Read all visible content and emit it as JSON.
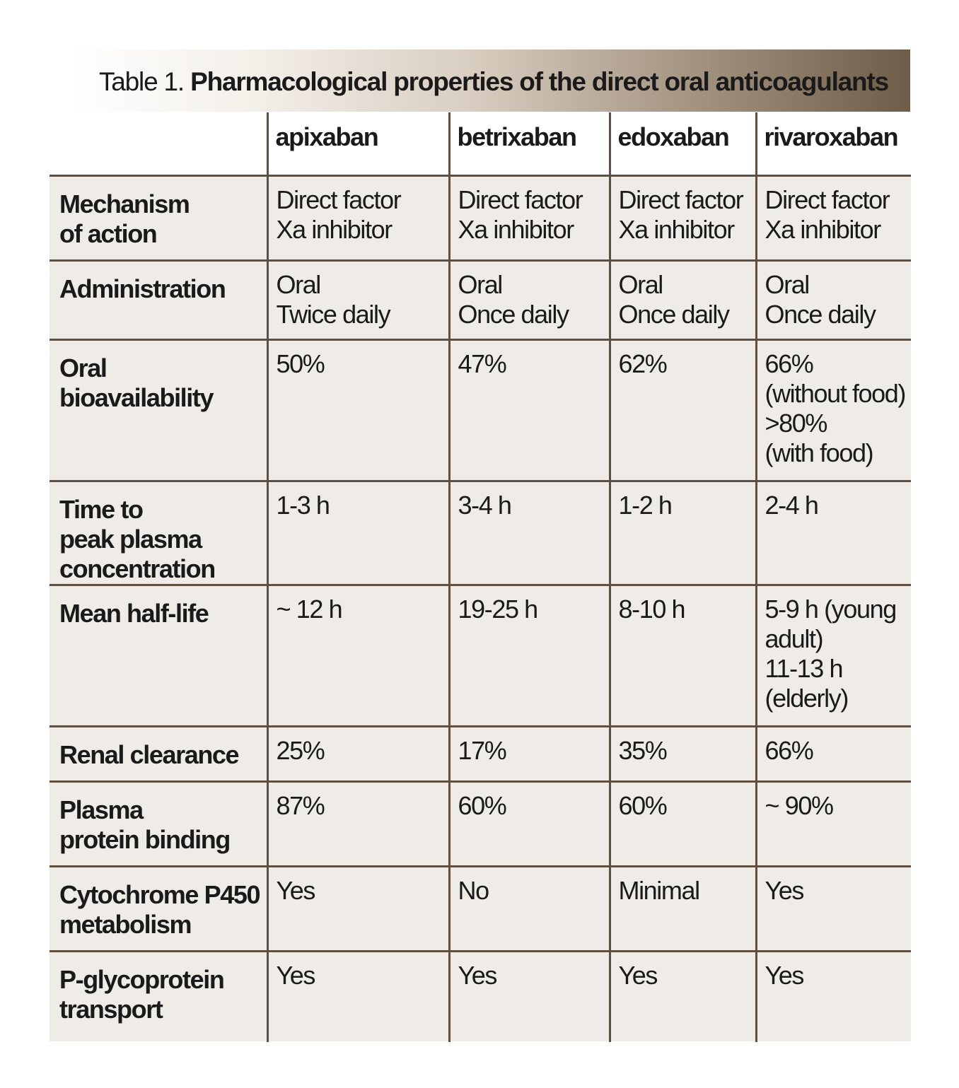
{
  "title": {
    "prefix": "Table 1.",
    "main": "Pharmacological properties of the direct oral anticoagulants"
  },
  "columns": [
    "apixaban",
    "betrixaban",
    "edoxaban",
    "rivaroxaban"
  ],
  "rows": [
    {
      "label": [
        "Mechanism",
        "of action"
      ],
      "cells": [
        [
          "Direct factor",
          "Xa  inhibitor"
        ],
        [
          "Direct factor",
          "Xa  inhibitor"
        ],
        [
          "Direct factor",
          "Xa  inhibitor"
        ],
        [
          "Direct factor",
          "Xa  inhibitor"
        ]
      ]
    },
    {
      "label": [
        "Administration"
      ],
      "cells": [
        [
          "Oral",
          "Twice daily"
        ],
        [
          "Oral",
          "Once daily"
        ],
        [
          "Oral",
          "Once daily"
        ],
        [
          "Oral",
          "Once daily"
        ]
      ]
    },
    {
      "label": [
        "Oral",
        "bioavailability"
      ],
      "cells": [
        [
          "50%"
        ],
        [
          "47%"
        ],
        [
          "62%"
        ],
        [
          "66%",
          "(without food)",
          ">80%",
          "(with food)"
        ]
      ]
    },
    {
      "label": [
        "Time to",
        "peak plasma",
        "concentration"
      ],
      "cells": [
        [
          "1-3 h"
        ],
        [
          "3-4 h"
        ],
        [
          "1-2 h"
        ],
        [
          "2-4 h"
        ]
      ]
    },
    {
      "label": [
        "Mean half-life"
      ],
      "cells": [
        [
          "~ 12 h"
        ],
        [
          "19-25 h"
        ],
        [
          "8-10 h"
        ],
        [
          "5-9 h (young",
          "adult)",
          "11-13 h",
          "(elderly)"
        ]
      ]
    },
    {
      "label": [
        "Renal clearance"
      ],
      "cells": [
        [
          "25%"
        ],
        [
          "17%"
        ],
        [
          "35%"
        ],
        [
          "66%"
        ]
      ]
    },
    {
      "label": [
        "Plasma",
        "protein binding"
      ],
      "cells": [
        [
          "87%"
        ],
        [
          "60%"
        ],
        [
          "60%"
        ],
        [
          "~ 90%"
        ]
      ]
    },
    {
      "label": [
        "Cytochrome P450",
        "metabolism"
      ],
      "cells": [
        [
          "Yes"
        ],
        [
          "No"
        ],
        [
          "Minimal"
        ],
        [
          "Yes"
        ]
      ]
    },
    {
      "label": [
        "P-glycoprotein",
        "transport"
      ],
      "cells": [
        [
          "Yes"
        ],
        [
          "Yes"
        ],
        [
          "Yes"
        ],
        [
          "Yes"
        ]
      ]
    }
  ]
}
